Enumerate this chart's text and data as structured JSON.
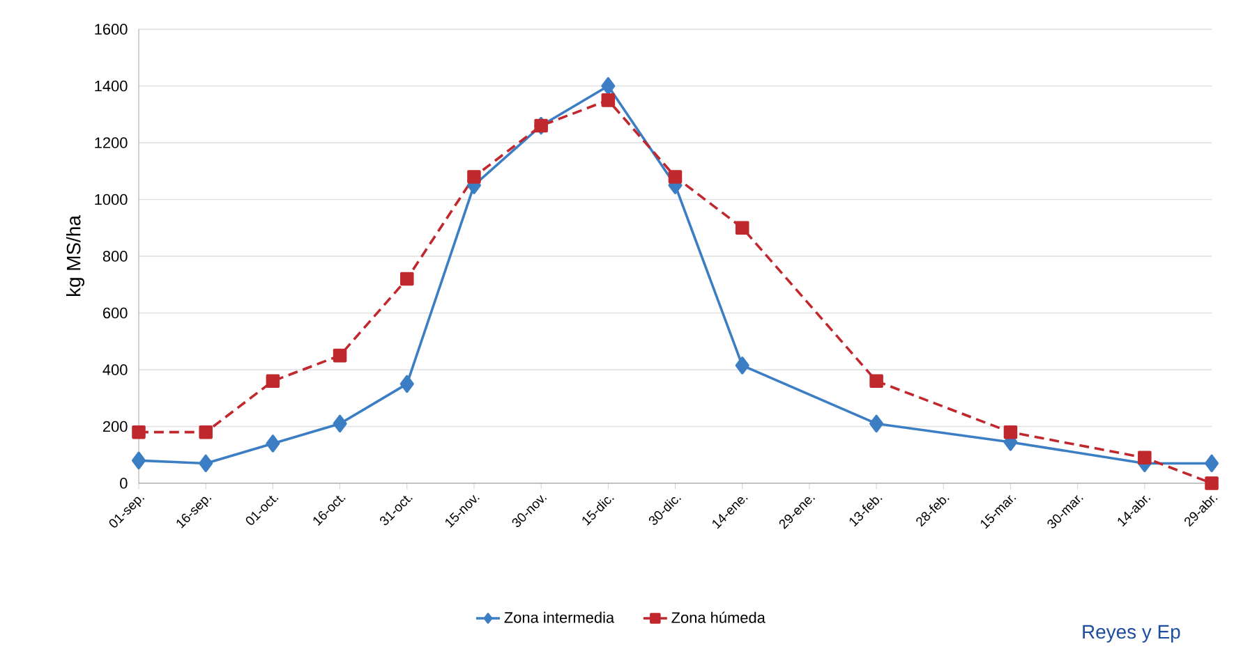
{
  "chart_data": {
    "type": "line",
    "ylabel": "kg MS/ha",
    "categories": [
      "01-sep.",
      "16-sep.",
      "01-oct.",
      "16-oct.",
      "31-oct.",
      "15-nov.",
      "30-nov.",
      "15-dic.",
      "30-dic.",
      "14-ene.",
      "29-ene.",
      "13-feb.",
      "28-feb.",
      "15-mar.",
      "30-mar.",
      "14-abr.",
      "29-abr."
    ],
    "series": [
      {
        "name": "Zona intermedia",
        "color": "#3b7ec4",
        "marker": "diamond",
        "line_style": "solid",
        "values": [
          80,
          70,
          140,
          210,
          350,
          1050,
          1260,
          1400,
          1050,
          415,
          null,
          210,
          null,
          145,
          null,
          70,
          70
        ]
      },
      {
        "name": "Zona húmeda",
        "color": "#c0282d",
        "marker": "square",
        "line_style": "dashed",
        "values": [
          180,
          180,
          360,
          450,
          720,
          1080,
          1260,
          1350,
          1080,
          900,
          null,
          360,
          null,
          180,
          null,
          90,
          0
        ]
      }
    ],
    "ylim": [
      0,
      1600
    ],
    "yticks": [
      0,
      200,
      400,
      600,
      800,
      1000,
      1200,
      1400,
      1600
    ],
    "grid": "y",
    "legend": "bottom",
    "annotations": [
      "Reyes y Ep"
    ]
  }
}
